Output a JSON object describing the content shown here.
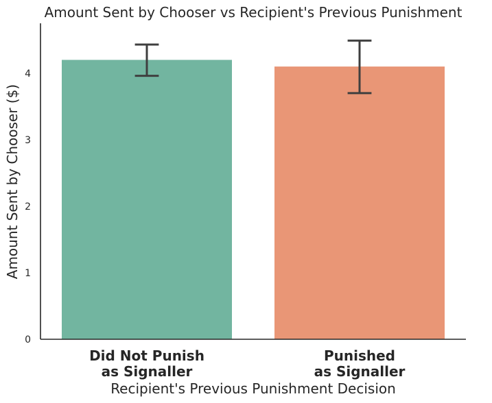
{
  "chart_data": {
    "type": "bar",
    "title": "Amount Sent by Chooser vs Recipient's Previous Punishment",
    "xlabel": "Recipient's Previous Punishment Decision",
    "ylabel": "Amount Sent by Chooser ($)",
    "categories": [
      [
        "Did Not Punish",
        "as Signaller"
      ],
      [
        "Punished",
        "as Signaller"
      ]
    ],
    "values": [
      4.2,
      4.1
    ],
    "error_low": [
      3.96,
      3.7
    ],
    "error_high": [
      4.43,
      4.49
    ],
    "colors": [
      "#72b5a0",
      "#e99676"
    ],
    "ylim": [
      0,
      4.75
    ],
    "yticks": [
      0,
      1,
      2,
      3,
      4
    ],
    "grid": false,
    "legend": "none"
  }
}
